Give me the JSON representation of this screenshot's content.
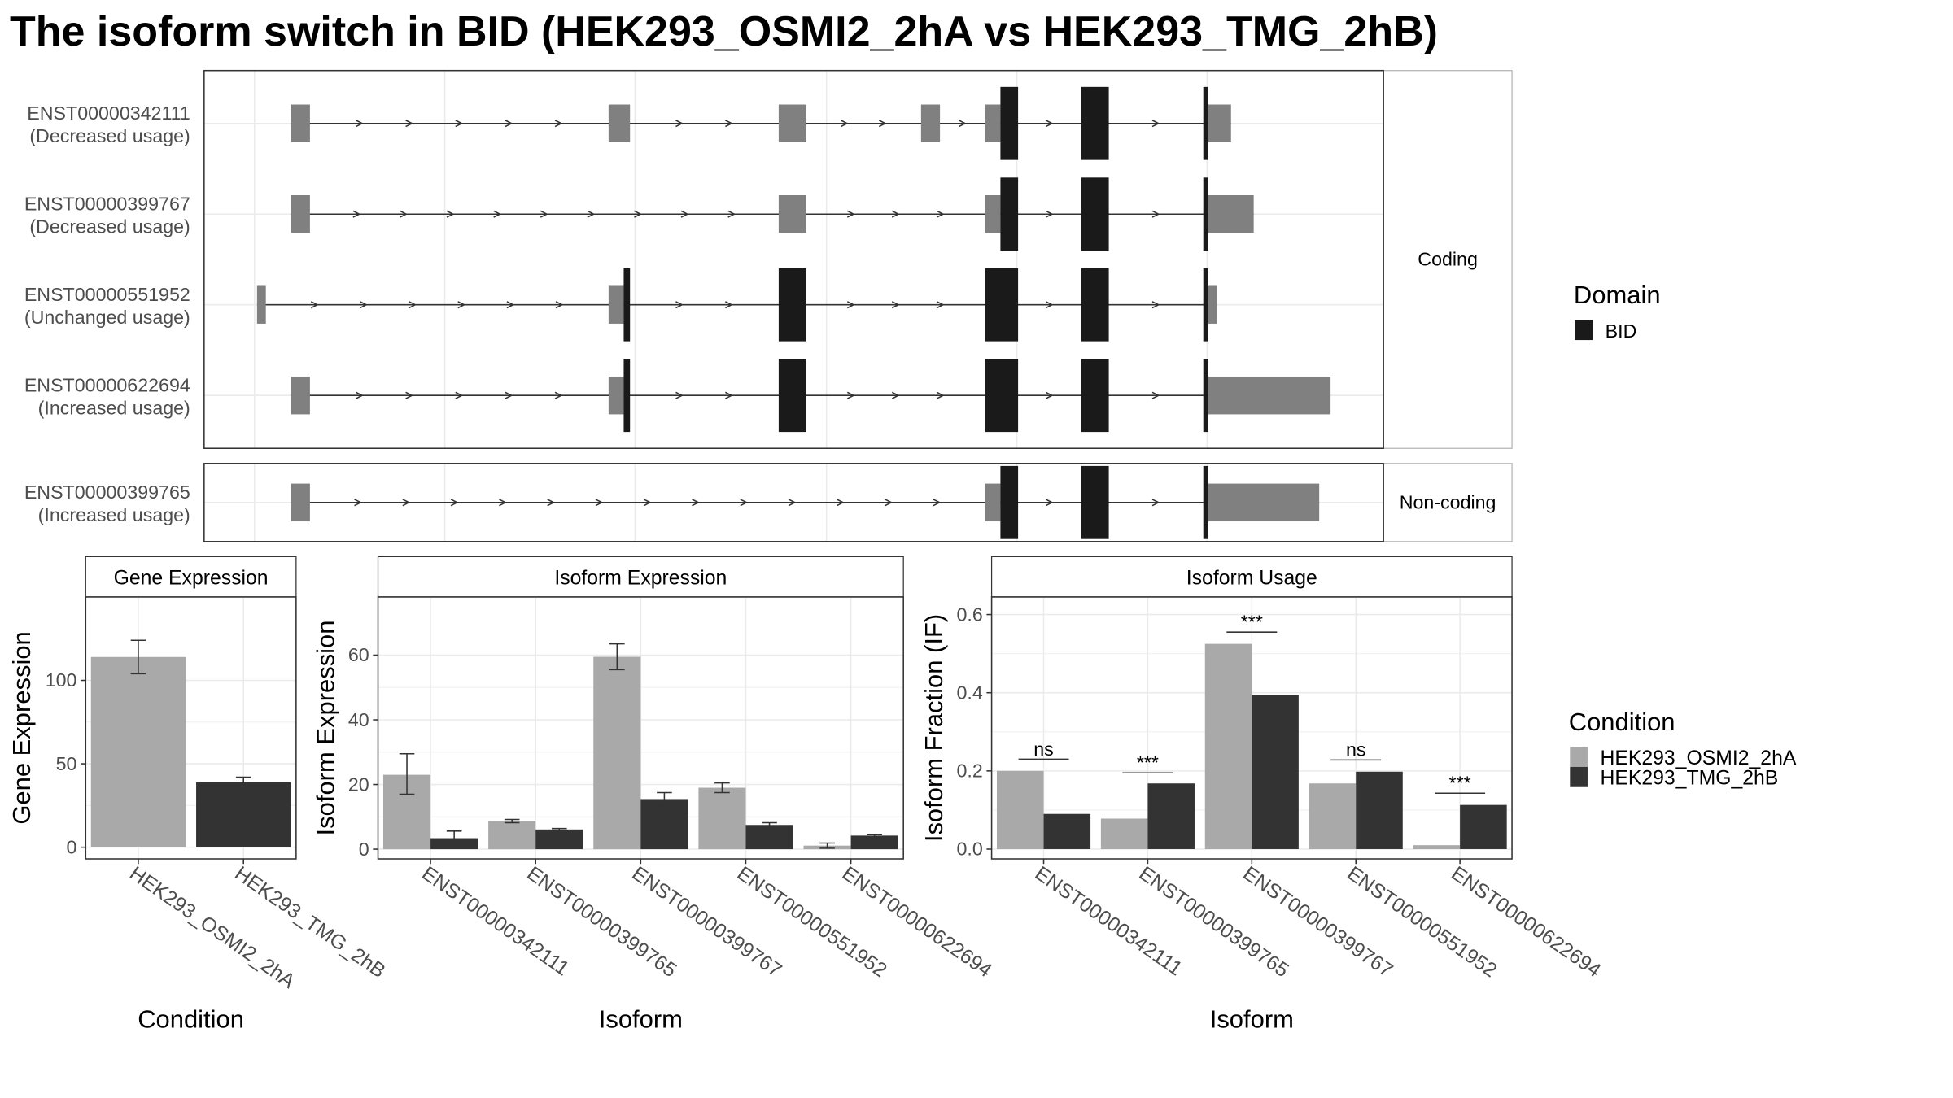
{
  "title": "The isoform switch in BID (HEK293_OSMI2_2hA vs HEK293_TMG_2hB)",
  "colors": {
    "condition_a": "#a9a9a9",
    "condition_b": "#333333",
    "utr": "#808080",
    "domain": "#1a1a1a",
    "intron": "#333333",
    "grid": "#ebebeb",
    "strip": "#ffffff",
    "panel_border": "#333333"
  },
  "structure": {
    "facets": [
      "Coding",
      "Non-coding"
    ],
    "transcripts": [
      {
        "id": "ENST00000342111",
        "usage": "(Decreased usage)",
        "facet": "Coding",
        "exons": [
          [
            231,
            246,
            "utr"
          ],
          [
            483,
            500,
            "utr"
          ],
          [
            618,
            640,
            "utr"
          ],
          [
            731,
            746,
            "utr"
          ],
          [
            782,
            794,
            "utr"
          ],
          [
            794,
            808,
            "domain"
          ],
          [
            858,
            880,
            "domain"
          ],
          [
            955,
            959,
            "domain"
          ],
          [
            959,
            977,
            "utr"
          ]
        ]
      },
      {
        "id": "ENST00000399767",
        "usage": "(Decreased usage)",
        "facet": "Coding",
        "exons": [
          [
            231,
            246,
            "utr"
          ],
          [
            618,
            640,
            "utr"
          ],
          [
            782,
            794,
            "utr"
          ],
          [
            794,
            808,
            "domain"
          ],
          [
            858,
            880,
            "domain"
          ],
          [
            955,
            959,
            "domain"
          ],
          [
            959,
            995,
            "utr"
          ]
        ]
      },
      {
        "id": "ENST00000551952",
        "usage": "(Unchanged usage)",
        "facet": "Coding",
        "exons": [
          [
            204,
            211,
            "utr"
          ],
          [
            483,
            495,
            "utr"
          ],
          [
            495,
            500,
            "domain"
          ],
          [
            618,
            640,
            "domain"
          ],
          [
            782,
            808,
            "domain"
          ],
          [
            858,
            880,
            "domain"
          ],
          [
            955,
            959,
            "domain"
          ],
          [
            959,
            966,
            "utr"
          ]
        ]
      },
      {
        "id": "ENST00000622694",
        "usage": "(Increased usage)",
        "facet": "Coding",
        "exons": [
          [
            231,
            246,
            "utr"
          ],
          [
            483,
            495,
            "utr"
          ],
          [
            495,
            500,
            "domain"
          ],
          [
            618,
            640,
            "domain"
          ],
          [
            782,
            808,
            "domain"
          ],
          [
            858,
            880,
            "domain"
          ],
          [
            955,
            959,
            "domain"
          ],
          [
            959,
            1056,
            "utr"
          ]
        ]
      },
      {
        "id": "ENST00000399765",
        "usage": "(Increased usage)",
        "facet": "Non-coding",
        "exons": [
          [
            231,
            246,
            "utr"
          ],
          [
            782,
            794,
            "utr"
          ],
          [
            794,
            808,
            "domain"
          ],
          [
            858,
            880,
            "domain"
          ],
          [
            955,
            959,
            "domain"
          ],
          [
            959,
            1047,
            "utr"
          ]
        ]
      }
    ]
  },
  "legend_domain": {
    "title": "Domain",
    "items": [
      {
        "label": "BID",
        "color": "#1a1a1a"
      }
    ]
  },
  "legend_condition": {
    "title": "Condition",
    "items": [
      {
        "label": "HEK293_OSMI2_2hA",
        "color": "#a9a9a9"
      },
      {
        "label": "HEK293_TMG_2hB",
        "color": "#333333"
      }
    ]
  },
  "chart_data": [
    {
      "type": "bar",
      "strip": "Gene Expression",
      "xlabel": "Condition",
      "ylabel": "Gene Expression",
      "ylim": [
        -7,
        150
      ],
      "yticks": [
        0,
        50,
        100
      ],
      "categories": [
        "HEK293_OSMI2_2hA",
        "HEK293_TMG_2hB"
      ],
      "values": [
        114,
        39
      ],
      "errors": [
        [
          104,
          124
        ],
        [
          37,
          42
        ]
      ]
    },
    {
      "type": "bar",
      "strip": "Isoform Expression",
      "xlabel": "Isoform",
      "ylabel": "Isoform Expression",
      "ylim": [
        -3,
        78
      ],
      "yticks": [
        0,
        20,
        40,
        60
      ],
      "categories": [
        "ENST00000342111",
        "ENST00000399765",
        "ENST00000399767",
        "ENST00000551952",
        "ENST00000622694"
      ],
      "series": [
        {
          "name": "HEK293_OSMI2_2hA",
          "values": [
            23,
            8.7,
            59.5,
            19,
            1.1
          ],
          "errors": [
            [
              17,
              29.5
            ],
            [
              8.2,
              9.2
            ],
            [
              55.5,
              63.5
            ],
            [
              17.5,
              20.5
            ],
            [
              0.3,
              1.9
            ]
          ]
        },
        {
          "name": "HEK293_TMG_2hB",
          "values": [
            3.4,
            6.1,
            15.5,
            7.5,
            4.2
          ],
          "errors": [
            [
              1.2,
              5.6
            ],
            [
              5.8,
              6.4
            ],
            [
              13.5,
              17.5
            ],
            [
              6.8,
              8.2
            ],
            [
              3.9,
              4.5
            ]
          ]
        }
      ]
    },
    {
      "type": "bar",
      "strip": "Isoform Usage",
      "xlabel": "Isoform",
      "ylabel": "Isoform Fraction (IF)",
      "ylim": [
        -0.025,
        0.645
      ],
      "yticks": [
        "0.0",
        "0.2",
        "0.4",
        "0.6"
      ],
      "categories": [
        "ENST00000342111",
        "ENST00000399765",
        "ENST00000399767",
        "ENST00000551952",
        "ENST00000622694"
      ],
      "series": [
        {
          "name": "HEK293_OSMI2_2hA",
          "values": [
            0.2,
            0.078,
            0.525,
            0.168,
            0.01
          ]
        },
        {
          "name": "HEK293_TMG_2hB",
          "values": [
            0.09,
            0.168,
            0.395,
            0.198,
            0.113
          ]
        }
      ],
      "significance": [
        {
          "label": "ns",
          "y": 0.23
        },
        {
          "label": "***",
          "y": 0.195
        },
        {
          "label": "***",
          "y": 0.555
        },
        {
          "label": "ns",
          "y": 0.228
        },
        {
          "label": "***",
          "y": 0.143
        }
      ]
    }
  ]
}
